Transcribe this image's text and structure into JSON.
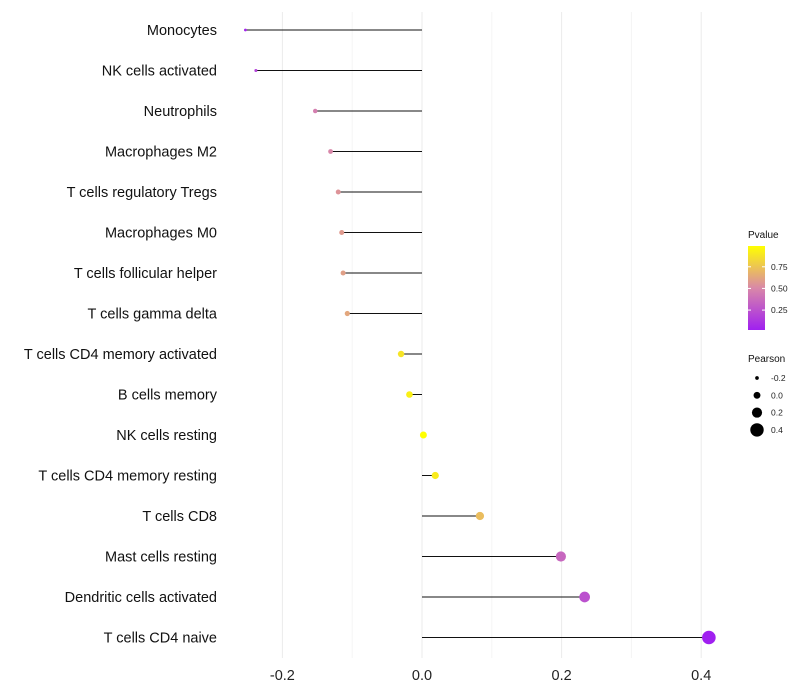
{
  "chart_data": {
    "type": "lollipop",
    "title": "",
    "xlabel": "",
    "ylabel": "",
    "xlim": [
      -0.285,
      0.44
    ],
    "x_ticks": [
      -0.2,
      0.0,
      0.2,
      0.4
    ],
    "x_tick_labels": [
      "-0.2",
      "0.0",
      "0.2",
      "0.4"
    ],
    "grid": true,
    "baseline": 0.0,
    "categories": [
      "Monocytes",
      "NK cells activated",
      "Neutrophils",
      "Macrophages M2",
      "T cells regulatory  Tregs ",
      "Macrophages M0",
      "T cells follicular helper",
      "T cells gamma delta",
      "T cells CD4 memory activated",
      "B cells memory",
      "NK cells resting",
      "T cells CD4 memory resting",
      "T cells CD8",
      "Mast cells resting",
      "Dendritic cells activated",
      "T cells CD4 naive"
    ],
    "pearson": [
      -0.253,
      -0.238,
      -0.153,
      -0.131,
      -0.12,
      -0.115,
      -0.113,
      -0.107,
      -0.03,
      -0.018,
      0.002,
      0.019,
      0.083,
      0.199,
      0.233,
      0.411
    ],
    "pvalue": [
      0.05,
      0.18,
      0.46,
      0.5,
      0.55,
      0.58,
      0.6,
      0.63,
      0.88,
      0.93,
      0.99,
      0.91,
      0.72,
      0.35,
      0.25,
      0.02
    ],
    "legend": {
      "position": "right",
      "color": {
        "title": "Pvalue",
        "ticks": [
          0.25,
          0.5,
          0.75
        ],
        "tick_labels": [
          "0.25",
          "0.50",
          "0.75"
        ],
        "range": [
          0.02,
          0.99
        ],
        "low_color": "#a020f0",
        "mid_color": "#d988a8",
        "high_color": "#ffff00"
      },
      "size": {
        "title": "Pearson",
        "values": [
          -0.2,
          0.0,
          0.2,
          0.4
        ],
        "labels": [
          "-0.2",
          "0.0",
          "0.2",
          "0.4"
        ]
      }
    }
  }
}
